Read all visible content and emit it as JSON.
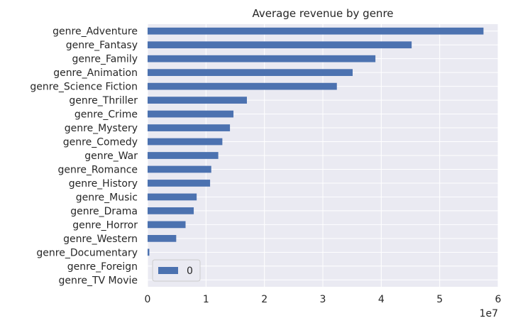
{
  "chart_data": {
    "type": "bar",
    "orientation": "horizontal",
    "title": "Average revenue by genre",
    "xlabel": "",
    "ylabel": "",
    "x_offset_label": "1e7",
    "xlim": [
      0,
      60000000
    ],
    "x_ticks": [
      0,
      10000000,
      20000000,
      30000000,
      40000000,
      50000000,
      60000000
    ],
    "x_tick_labels": [
      "0",
      "1",
      "2",
      "3",
      "4",
      "5",
      "6"
    ],
    "grid": true,
    "legend_position": "lower-left",
    "categories": [
      "genre_Adventure",
      "genre_Fantasy",
      "genre_Family",
      "genre_Animation",
      "genre_Science Fiction",
      "genre_Thriller",
      "genre_Crime",
      "genre_Mystery",
      "genre_Comedy",
      "genre_War",
      "genre_Romance",
      "genre_History",
      "genre_Music",
      "genre_Drama",
      "genre_Horror",
      "genre_Western",
      "genre_Documentary",
      "genre_Foreign",
      "genre_TV Movie"
    ],
    "series": [
      {
        "name": "0",
        "color": "#4c72b0",
        "values": [
          57500000,
          45200000,
          39000000,
          35100000,
          32400000,
          17000000,
          14700000,
          14100000,
          12800000,
          12100000,
          10900000,
          10700000,
          8400000,
          7900000,
          6500000,
          4900000,
          300000,
          0,
          0
        ]
      }
    ]
  }
}
